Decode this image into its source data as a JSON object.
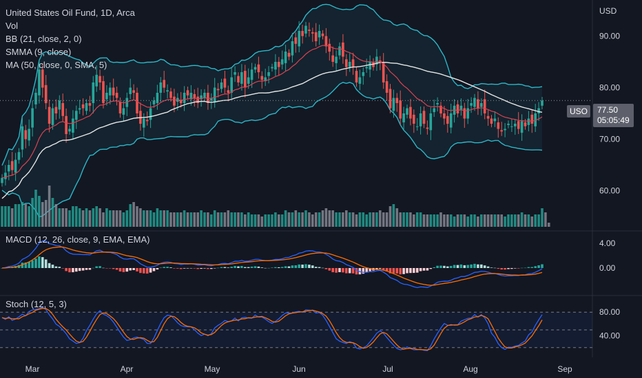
{
  "header": {
    "title": "United States Oil Fund, 1D, Arca",
    "indicators": [
      "Vol",
      "BB (21, close, 2, 0)",
      "SMMA (9, close)",
      "MA (50, close, 0, SMA, 5)"
    ]
  },
  "price_scale": {
    "currency": "USD",
    "ticks": [
      "90.00",
      "80.00",
      "70.00",
      "60.00"
    ]
  },
  "last_price": {
    "ticker": "USO",
    "price": "77.50",
    "countdown": "05:05:49"
  },
  "macd_panel": {
    "label": "MACD (12, 26, close, 9, EMA, EMA)",
    "ticks": [
      "4.00",
      "0.00"
    ]
  },
  "stoch_panel": {
    "label": "Stoch (12, 5, 3)",
    "ticks": [
      "80.00",
      "40.00"
    ]
  },
  "time_axis": [
    "Mar",
    "Apr",
    "May",
    "Jun",
    "Jul",
    "Aug",
    "Sep"
  ],
  "colors": {
    "background": "#131722",
    "up": "#26a69a",
    "down": "#ef5350",
    "bb_band": "#2bb7c9",
    "smma": "#e04050",
    "ma": "#e6e6e6",
    "macd": "#2962ff",
    "signal": "#ff6d00",
    "stoch_k": "#2962ff",
    "stoch_d": "#ff6d00"
  },
  "chart_data": {
    "type": "candlestick",
    "symbol": "United States Oil Fund",
    "interval": "1D",
    "ylim": [
      53,
      97
    ],
    "closes": [
      62.5,
      63.5,
      65,
      64,
      66,
      67.5,
      72.5,
      70,
      72,
      76,
      79,
      83.5,
      80,
      77,
      73,
      76,
      75,
      77.5,
      74.5,
      71,
      72,
      74,
      75.5,
      76,
      76,
      77,
      76.5,
      81,
      82.5,
      81,
      77,
      79,
      80,
      78.5,
      78,
      75,
      76,
      78,
      80,
      79,
      75,
      73,
      74,
      73.5,
      76,
      77.5,
      79,
      81,
      80,
      79.5,
      78,
      76.5,
      78,
      77,
      79,
      78.5,
      79,
      78,
      77,
      78.5,
      79,
      77,
      78,
      80,
      79.5,
      81,
      80,
      79,
      82,
      83,
      81,
      83,
      80,
      82,
      83.5,
      84,
      83,
      81.5,
      82,
      83,
      84,
      85,
      84,
      85.5,
      87,
      86,
      89,
      88.5,
      91,
      90,
      92,
      91,
      90.5,
      89,
      91,
      90,
      88,
      87,
      85,
      86,
      88,
      86,
      84,
      85,
      84,
      81,
      82,
      83,
      84,
      85,
      84,
      86,
      85,
      81,
      79,
      76,
      78,
      77,
      74,
      75,
      76,
      74,
      73,
      72.5,
      75,
      73,
      72,
      75,
      76,
      77,
      75,
      74,
      73,
      75,
      76.5,
      75,
      76.5,
      74,
      76,
      77,
      78,
      76,
      77,
      75,
      74,
      73,
      74,
      72,
      71.5,
      72,
      73,
      72.5,
      73,
      72,
      73.5,
      72.5,
      74,
      73,
      75,
      76,
      77.5
    ],
    "volume": [
      0.5,
      0.5,
      0.5,
      0.45,
      0.55,
      0.55,
      0.6,
      0.55,
      0.5,
      0.7,
      0.9,
      0.75,
      0.6,
      0.65,
      1.0,
      0.7,
      0.55,
      0.45,
      0.45,
      0.45,
      0.4,
      0.5,
      0.5,
      0.45,
      0.4,
      0.45,
      0.4,
      0.45,
      0.5,
      0.45,
      0.35,
      0.45,
      0.4,
      0.4,
      0.4,
      0.4,
      0.35,
      0.4,
      0.55,
      0.6,
      0.5,
      0.45,
      0.4,
      0.4,
      0.4,
      0.35,
      0.45,
      0.4,
      0.4,
      0.4,
      0.35,
      0.35,
      0.35,
      0.35,
      0.4,
      0.35,
      0.35,
      0.35,
      0.35,
      0.4,
      0.35,
      0.35,
      0.3,
      0.4,
      0.35,
      0.35,
      0.35,
      0.4,
      0.35,
      0.35,
      0.35,
      0.35,
      0.3,
      0.35,
      0.3,
      0.3,
      0.3,
      0.25,
      0.3,
      0.3,
      0.3,
      0.35,
      0.3,
      0.3,
      0.4,
      0.35,
      0.35,
      0.4,
      0.35,
      0.35,
      0.4,
      0.35,
      0.3,
      0.35,
      0.35,
      0.4,
      0.45,
      0.4,
      0.4,
      0.35,
      0.35,
      0.35,
      0.4,
      0.35,
      0.35,
      0.3,
      0.35,
      0.35,
      0.3,
      0.35,
      0.35,
      0.35,
      0.4,
      0.35,
      0.35,
      0.5,
      0.55,
      0.45,
      0.35,
      0.35,
      0.35,
      0.35,
      0.3,
      0.35,
      0.35,
      0.3,
      0.3,
      0.3,
      0.3,
      0.3,
      0.35,
      0.3,
      0.3,
      0.3,
      0.25,
      0.3,
      0.3,
      0.3,
      0.25,
      0.3,
      0.3,
      0.25,
      0.3,
      0.3,
      0.3,
      0.3,
      0.3,
      0.3,
      0.3,
      0.25,
      0.3,
      0.3,
      0.3,
      0.3,
      0.35,
      0.3,
      0.3,
      0.25,
      0.3,
      0.3,
      0.45,
      0.35,
      0.1
    ]
  }
}
